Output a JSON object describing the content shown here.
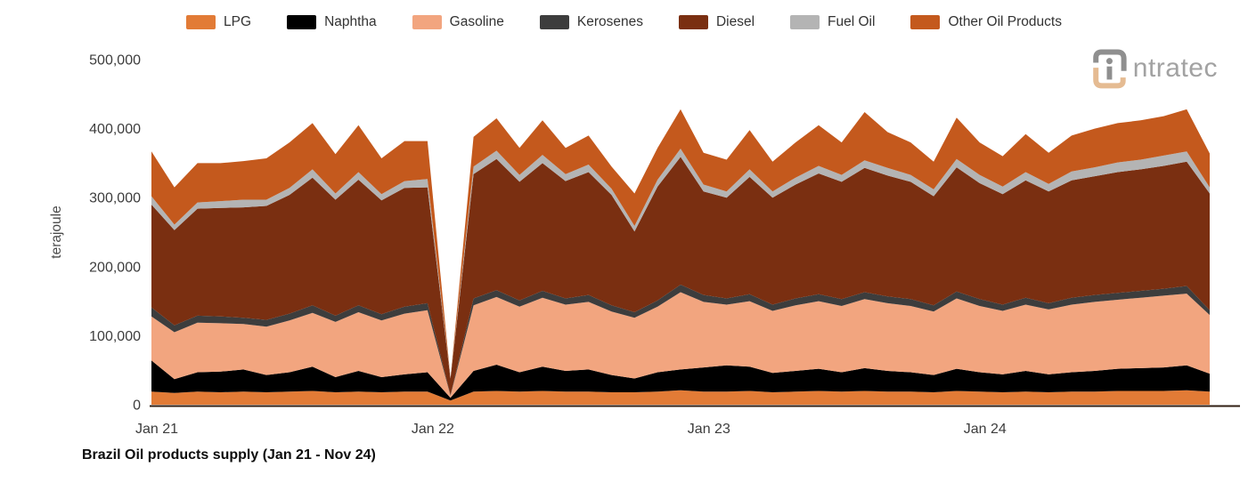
{
  "title": "Brazil Oil products supply (Jan 21 - Nov 24)",
  "logo": {
    "text": "ntratec"
  },
  "legend": {
    "items": [
      {
        "id": "lpg",
        "label": "LPG",
        "color": "#E27B36"
      },
      {
        "id": "naphtha",
        "label": "Naphtha",
        "color": "#000000"
      },
      {
        "id": "gasoline",
        "label": "Gasoline",
        "color": "#F2A57F"
      },
      {
        "id": "kerosenes",
        "label": "Kerosenes",
        "color": "#3D3D3D"
      },
      {
        "id": "diesel",
        "label": "Diesel",
        "color": "#7A2F11"
      },
      {
        "id": "fuel_oil",
        "label": "Fuel Oil",
        "color": "#B4B4B4"
      },
      {
        "id": "other",
        "label": "Other Oil Products",
        "color": "#C4591D"
      }
    ]
  },
  "y_axis": {
    "label": "terajoule",
    "tick_values": [
      0,
      100000,
      200000,
      300000,
      400000,
      500000
    ],
    "tick_labels": [
      "0",
      "100,000",
      "200,000",
      "300,000",
      "400,000",
      "500,000"
    ]
  },
  "x_axis": {
    "tick_labels": [
      "Jan 21",
      "Jan 22",
      "Jan 23",
      "Jan 24"
    ],
    "tick_month_index": [
      0,
      12,
      24,
      36
    ]
  },
  "chart_data": {
    "type": "area",
    "stacked": true,
    "title": "Brazil Oil products supply (Jan 21 - Nov 24)",
    "xlabel": "",
    "ylabel": "terajoule",
    "ylim": [
      0,
      500000
    ],
    "grid": false,
    "legend_position": "top",
    "categories": [
      "Jan 21",
      "Feb 21",
      "Mar 21",
      "Apr 21",
      "May 21",
      "Jun 21",
      "Jul 21",
      "Aug 21",
      "Sep 21",
      "Oct 21",
      "Nov 21",
      "Dec 21",
      "Jan 22",
      "Feb 22",
      "Mar 22",
      "Apr 22",
      "May 22",
      "Jun 22",
      "Jul 22",
      "Aug 22",
      "Sep 22",
      "Oct 22",
      "Nov 22",
      "Dec 22",
      "Jan 23",
      "Feb 23",
      "Mar 23",
      "Apr 23",
      "May 23",
      "Jun 23",
      "Jul 23",
      "Aug 23",
      "Sep 23",
      "Oct 23",
      "Nov 23",
      "Dec 23",
      "Jan 24",
      "Feb 24",
      "Mar 24",
      "Apr 24",
      "May 24",
      "Jun 24",
      "Jul 24",
      "Aug 24",
      "Sep 24",
      "Oct 24",
      "Nov 24"
    ],
    "series": [
      {
        "id": "lpg",
        "name": "LPG",
        "color": "#E27B36",
        "values": [
          19000,
          17000,
          19000,
          18000,
          19000,
          18000,
          19000,
          20000,
          18000,
          19000,
          18000,
          19000,
          19000,
          6000,
          19000,
          20000,
          19000,
          20000,
          19000,
          19000,
          18000,
          18000,
          19000,
          21000,
          19000,
          19000,
          20000,
          18000,
          19000,
          20000,
          19000,
          20000,
          19000,
          19000,
          18000,
          20000,
          19000,
          18000,
          19000,
          18000,
          19000,
          19000,
          20000,
          20000,
          20000,
          21000,
          19000
        ]
      },
      {
        "id": "naphtha",
        "name": "Naphtha",
        "color": "#000000",
        "values": [
          45000,
          20000,
          28000,
          30000,
          32000,
          25000,
          28000,
          35000,
          22000,
          30000,
          22000,
          25000,
          28000,
          4000,
          30000,
          38000,
          28000,
          35000,
          30000,
          32000,
          25000,
          20000,
          28000,
          30000,
          35000,
          38000,
          35000,
          28000,
          30000,
          32000,
          28000,
          33000,
          30000,
          28000,
          25000,
          32000,
          28000,
          26000,
          30000,
          26000,
          28000,
          30000,
          32000,
          33000,
          34000,
          36000,
          26000
        ]
      },
      {
        "id": "gasoline",
        "name": "Gasoline",
        "color": "#F2A57F",
        "values": [
          64000,
          68000,
          72000,
          70000,
          66000,
          70000,
          75000,
          78000,
          80000,
          85000,
          82000,
          88000,
          90000,
          3000,
          95000,
          98000,
          95000,
          100000,
          96000,
          98000,
          92000,
          88000,
          95000,
          112000,
          95000,
          88000,
          95000,
          90000,
          95000,
          98000,
          96000,
          100000,
          98000,
          96000,
          92000,
          102000,
          96000,
          92000,
          96000,
          94000,
          98000,
          100000,
          100000,
          102000,
          104000,
          104000,
          85000
        ]
      },
      {
        "id": "kerosenes",
        "name": "Kerosenes",
        "color": "#3D3D3D",
        "values": [
          13000,
          10000,
          10000,
          10000,
          9000,
          10000,
          10000,
          11000,
          9000,
          10000,
          9000,
          10000,
          10000,
          1000,
          10000,
          10000,
          9000,
          10000,
          9000,
          10000,
          9000,
          8000,
          9000,
          11000,
          10000,
          9000,
          10000,
          9000,
          10000,
          10000,
          10000,
          10000,
          10000,
          10000,
          9000,
          10000,
          10000,
          9000,
          10000,
          9000,
          10000,
          10000,
          10000,
          10000,
          10000,
          11000,
          7000
        ]
      },
      {
        "id": "diesel",
        "name": "Diesel",
        "color": "#7A2F11",
        "values": [
          149000,
          138000,
          155000,
          157000,
          160000,
          165000,
          172000,
          185000,
          168000,
          182000,
          165000,
          172000,
          168000,
          24000,
          180000,
          190000,
          172000,
          185000,
          170000,
          178000,
          160000,
          117000,
          165000,
          185000,
          150000,
          146000,
          170000,
          155000,
          165000,
          175000,
          170000,
          180000,
          175000,
          170000,
          158000,
          180000,
          168000,
          160000,
          170000,
          162000,
          170000,
          172000,
          175000,
          176000,
          178000,
          180000,
          169000
        ]
      },
      {
        "id": "fuel_oil",
        "name": "Fuel Oil",
        "color": "#B4B4B4",
        "values": [
          12000,
          8000,
          9000,
          10000,
          11000,
          9000,
          10000,
          12000,
          9000,
          11000,
          9000,
          10000,
          12000,
          1000,
          11000,
          12000,
          10000,
          12000,
          10000,
          11000,
          9000,
          8000,
          10000,
          12000,
          10000,
          9000,
          11000,
          9000,
          10000,
          11000,
          10000,
          11000,
          11000,
          10000,
          10000,
          12000,
          12000,
          11000,
          12000,
          11000,
          13000,
          13000,
          14000,
          14000,
          15000,
          15000,
          9000
        ]
      },
      {
        "id": "other",
        "name": "Other Oil Products",
        "color": "#C4591D",
        "values": [
          65000,
          54000,
          57000,
          55000,
          56000,
          60000,
          66000,
          67000,
          57000,
          68000,
          52000,
          58000,
          55000,
          0,
          43000,
          47000,
          39000,
          50000,
          38000,
          42000,
          32000,
          47000,
          46000,
          57000,
          46000,
          46000,
          57000,
          43000,
          51000,
          59000,
          47000,
          70000,
          52000,
          47000,
          40000,
          60000,
          47000,
          44000,
          55000,
          45000,
          52000,
          56000,
          57000,
          57000,
          57000,
          61000,
          49000
        ]
      }
    ]
  }
}
